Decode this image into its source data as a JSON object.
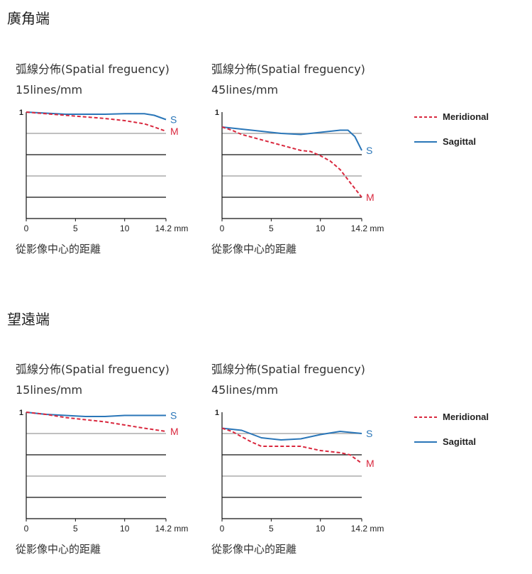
{
  "colors": {
    "meridional": "#d9283e",
    "sagittal": "#2a76b8",
    "grid_dark": "#111111",
    "grid_light": "#9a9a9a"
  },
  "sections": [
    {
      "title": "廣角端"
    },
    {
      "title": "望遠端"
    }
  ],
  "frequency_label": "弧線分佈(Spatial freguency)",
  "x_axis_label": "從影像中心的距離",
  "legend": {
    "meridional": "Meridional",
    "sagittal": "Sagittal"
  },
  "chart_data": [
    {
      "type": "line",
      "section": "廣角端",
      "subtitle": "15lines/mm",
      "xlabel": "從影像中心的距離",
      "xlim": [
        0,
        14.2
      ],
      "ylim": [
        0,
        1
      ],
      "xticks": [
        "0",
        "5",
        "10",
        "14.2 mm"
      ],
      "yticks": [
        "1"
      ],
      "grid": true,
      "series": [
        {
          "name": "S",
          "key": "sagittal",
          "x": [
            0,
            2,
            4,
            6,
            8,
            10,
            12,
            13,
            14.2
          ],
          "y": [
            1.0,
            0.99,
            0.98,
            0.98,
            0.98,
            0.985,
            0.985,
            0.97,
            0.93
          ]
        },
        {
          "name": "M",
          "key": "meridional",
          "x": [
            0,
            2,
            4,
            6,
            8,
            10,
            12,
            13,
            14.2
          ],
          "y": [
            1.0,
            0.985,
            0.97,
            0.955,
            0.94,
            0.92,
            0.89,
            0.86,
            0.82
          ]
        }
      ]
    },
    {
      "type": "line",
      "section": "廣角端",
      "subtitle": "45lines/mm",
      "xlabel": "從影像中心的距離",
      "xlim": [
        0,
        14.2
      ],
      "ylim": [
        0,
        1
      ],
      "xticks": [
        "0",
        "5",
        "10",
        "14.2 mm"
      ],
      "yticks": [
        "1"
      ],
      "grid": true,
      "series": [
        {
          "name": "S",
          "key": "sagittal",
          "x": [
            0,
            2,
            4,
            6,
            8,
            10,
            12,
            12.8,
            13.5,
            14.2
          ],
          "y": [
            0.86,
            0.84,
            0.82,
            0.8,
            0.79,
            0.81,
            0.83,
            0.83,
            0.77,
            0.64
          ]
        },
        {
          "name": "M",
          "key": "meridional",
          "x": [
            0,
            1,
            2,
            4,
            6,
            8,
            9,
            10,
            11,
            12,
            13,
            14.2
          ],
          "y": [
            0.86,
            0.83,
            0.79,
            0.74,
            0.69,
            0.64,
            0.63,
            0.59,
            0.54,
            0.46,
            0.34,
            0.2
          ]
        }
      ]
    },
    {
      "type": "line",
      "section": "望遠端",
      "subtitle": "15lines/mm",
      "xlabel": "從影像中心的距離",
      "xlim": [
        0,
        14.2
      ],
      "ylim": [
        0,
        1
      ],
      "xticks": [
        "0",
        "5",
        "10",
        "14.2 mm"
      ],
      "yticks": [
        "1"
      ],
      "grid": true,
      "series": [
        {
          "name": "S",
          "key": "sagittal",
          "x": [
            0,
            2,
            4,
            6,
            8,
            10,
            12,
            14.2
          ],
          "y": [
            1.0,
            0.98,
            0.97,
            0.96,
            0.96,
            0.97,
            0.97,
            0.97
          ]
        },
        {
          "name": "M",
          "key": "meridional",
          "x": [
            0,
            2,
            4,
            6,
            8,
            10,
            12,
            14.2
          ],
          "y": [
            1.0,
            0.98,
            0.95,
            0.93,
            0.91,
            0.88,
            0.85,
            0.82
          ]
        }
      ]
    },
    {
      "type": "line",
      "section": "望遠端",
      "subtitle": "45lines/mm",
      "xlabel": "從影像中心的距離",
      "xlim": [
        0,
        14.2
      ],
      "ylim": [
        0,
        1
      ],
      "xticks": [
        "0",
        "5",
        "10",
        "14.2 mm"
      ],
      "yticks": [
        "1"
      ],
      "grid": true,
      "series": [
        {
          "name": "S",
          "key": "sagittal",
          "x": [
            0,
            2,
            4,
            6,
            8,
            10,
            12,
            14.2
          ],
          "y": [
            0.85,
            0.83,
            0.76,
            0.74,
            0.75,
            0.79,
            0.82,
            0.8
          ]
        },
        {
          "name": "M",
          "key": "meridional",
          "x": [
            0,
            1,
            2,
            3,
            4,
            6,
            8,
            10,
            11,
            12,
            13,
            14.2
          ],
          "y": [
            0.85,
            0.82,
            0.77,
            0.72,
            0.68,
            0.68,
            0.68,
            0.64,
            0.63,
            0.62,
            0.6,
            0.52
          ]
        }
      ]
    }
  ]
}
